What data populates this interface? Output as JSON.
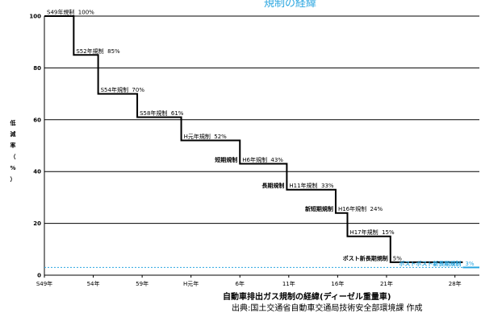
{
  "chart_data": {
    "type": "line",
    "title": "",
    "top_text_partial": "規制の経緯",
    "ylabel_chars": [
      "低",
      "減",
      "率",
      "（",
      "%",
      "）"
    ],
    "xlabel": "自動車排出ガス規制の経緯(ディーゼル重量車)",
    "source": "出典:国土交通省自動車交通局技術安全部環境課 作成",
    "yticks": [
      0,
      20,
      40,
      60,
      80,
      100
    ],
    "ylim": [
      0,
      100
    ],
    "xlim": [
      1974,
      2018.5
    ],
    "xticks": [
      {
        "label": "S49年",
        "year": 1974
      },
      {
        "label": "54年",
        "year": 1979
      },
      {
        "label": "59年",
        "year": 1984
      },
      {
        "label": "H元年",
        "year": 1989
      },
      {
        "label": "6年",
        "year": 1994
      },
      {
        "label": "11年",
        "year": 1999
      },
      {
        "label": "16年",
        "year": 2004
      },
      {
        "label": "21年",
        "year": 2009
      },
      {
        "label": "28年",
        "year": 2016
      }
    ],
    "series": [
      {
        "color": "#000000",
        "steps": [
          {
            "year": 1974,
            "value": 100,
            "label": "S49年規制",
            "pct": "100%",
            "prefix": ""
          },
          {
            "year": 1977,
            "value": 85,
            "label": "S52年規制",
            "pct": "85%",
            "prefix": ""
          },
          {
            "year": 1979.5,
            "value": 70,
            "label": "S54年規制",
            "pct": "70%",
            "prefix": ""
          },
          {
            "year": 1983.5,
            "value": 61,
            "label": "S58年規制",
            "pct": "61%",
            "prefix": ""
          },
          {
            "year": 1988,
            "value": 52,
            "label": "H元年規制",
            "pct": "52%",
            "prefix": ""
          },
          {
            "year": 1994,
            "value": 43,
            "label": "H6年規制",
            "pct": "43%",
            "prefix": "短期規制"
          },
          {
            "year": 1998.8,
            "value": 33,
            "label": "H11年規制",
            "pct": "33%",
            "prefix": "長期規制"
          },
          {
            "year": 2003.8,
            "value": 24,
            "label": "H16年規制",
            "pct": "24%",
            "prefix": "新短期規制"
          },
          {
            "year": 2005,
            "value": 15,
            "label": "H17年規制",
            "pct": "15%",
            "prefix": ""
          },
          {
            "year": 2009.4,
            "value": 5,
            "label": "",
            "pct": "5%",
            "prefix": "ポスト新長期規制"
          }
        ],
        "end_year": 2016.8
      },
      {
        "color": "#2aa6e0",
        "steps": [
          {
            "year": 2016.8,
            "value": 3,
            "label": "",
            "pct": "3%",
            "prefix": "ポストポスト新長期規制"
          }
        ],
        "end_year": 2018.5,
        "dotted_guide": true
      }
    ],
    "grid": true
  }
}
